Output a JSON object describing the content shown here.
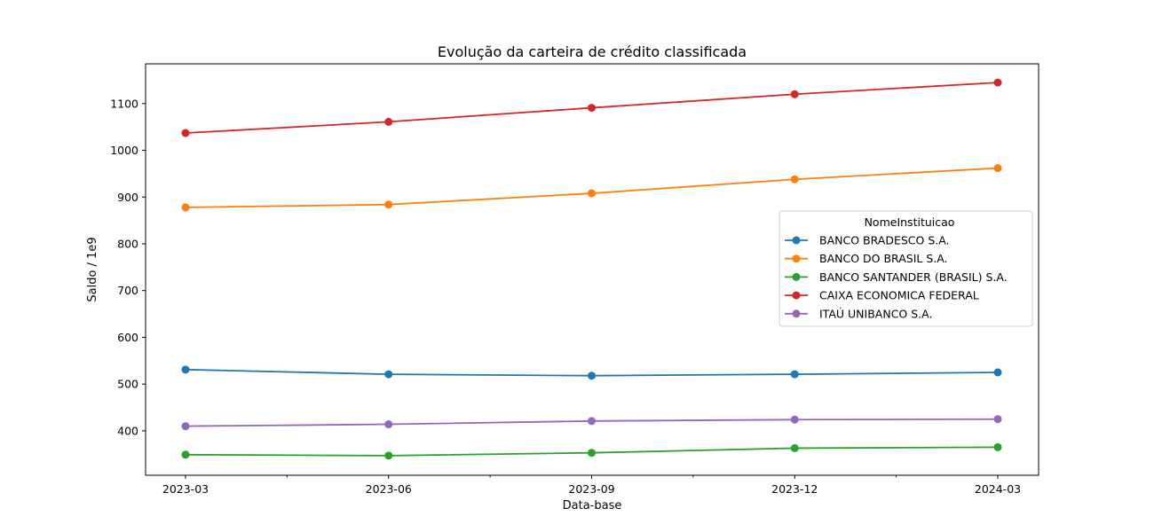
{
  "chart_data": {
    "type": "line",
    "title": "Evolução da carteira de crédito classificada",
    "xlabel": "Data-base",
    "ylabel": "Saldo / 1e9",
    "categories": [
      "2023-03",
      "2023-06",
      "2023-09",
      "2023-12",
      "2024-03"
    ],
    "ylim": [
      305,
      1185
    ],
    "yticks": [
      400,
      500,
      600,
      700,
      800,
      900,
      1000,
      1100
    ],
    "legend": {
      "title": "NomeInstituicao",
      "placement": "center-right"
    },
    "grid": false,
    "series": [
      {
        "name": "BANCO BRADESCO S.A.",
        "color": "#1f77b4",
        "values": [
          531,
          521,
          518,
          521,
          525
        ]
      },
      {
        "name": "BANCO DO BRASIL S.A.",
        "color": "#ff7f0e",
        "values": [
          878,
          884,
          908,
          938,
          962
        ]
      },
      {
        "name": "BANCO SANTANDER (BRASIL) S.A.",
        "color": "#2ca02c",
        "values": [
          349,
          347,
          353,
          363,
          365
        ]
      },
      {
        "name": "CAIXA ECONOMICA FEDERAL",
        "color": "#d62728",
        "values": [
          1037,
          1061,
          1091,
          1120,
          1145
        ]
      },
      {
        "name": "ITAÚ UNIBANCO S.A.",
        "color": "#9467bd",
        "values": [
          410,
          414,
          421,
          424,
          425
        ]
      }
    ]
  }
}
